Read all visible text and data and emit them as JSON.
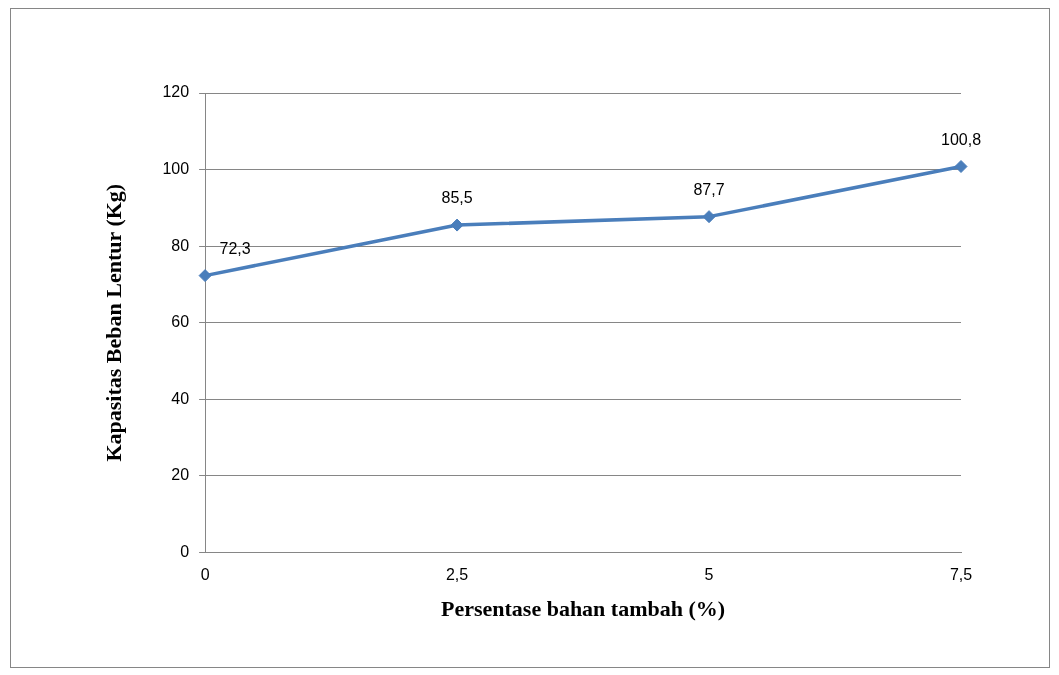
{
  "chart_data": {
    "type": "line",
    "xlabel": "Persentase bahan tambah (%)",
    "ylabel": "Kapasitas Beban Lentur (Kg)",
    "categories": [
      "0",
      "2,5",
      "5",
      "7,5"
    ],
    "series": [
      {
        "color": "#4a7ebb",
        "values": [
          72.3,
          85.5,
          87.7,
          100.8
        ],
        "value_labels": [
          "72,3",
          "85,5",
          "87,7",
          "100,8"
        ]
      }
    ],
    "ylim": [
      0,
      120
    ],
    "yticks": [
      0,
      20,
      40,
      60,
      80,
      100,
      120
    ],
    "grid": "y",
    "legend": false,
    "marker": "diamond",
    "line_style": "solid"
  }
}
